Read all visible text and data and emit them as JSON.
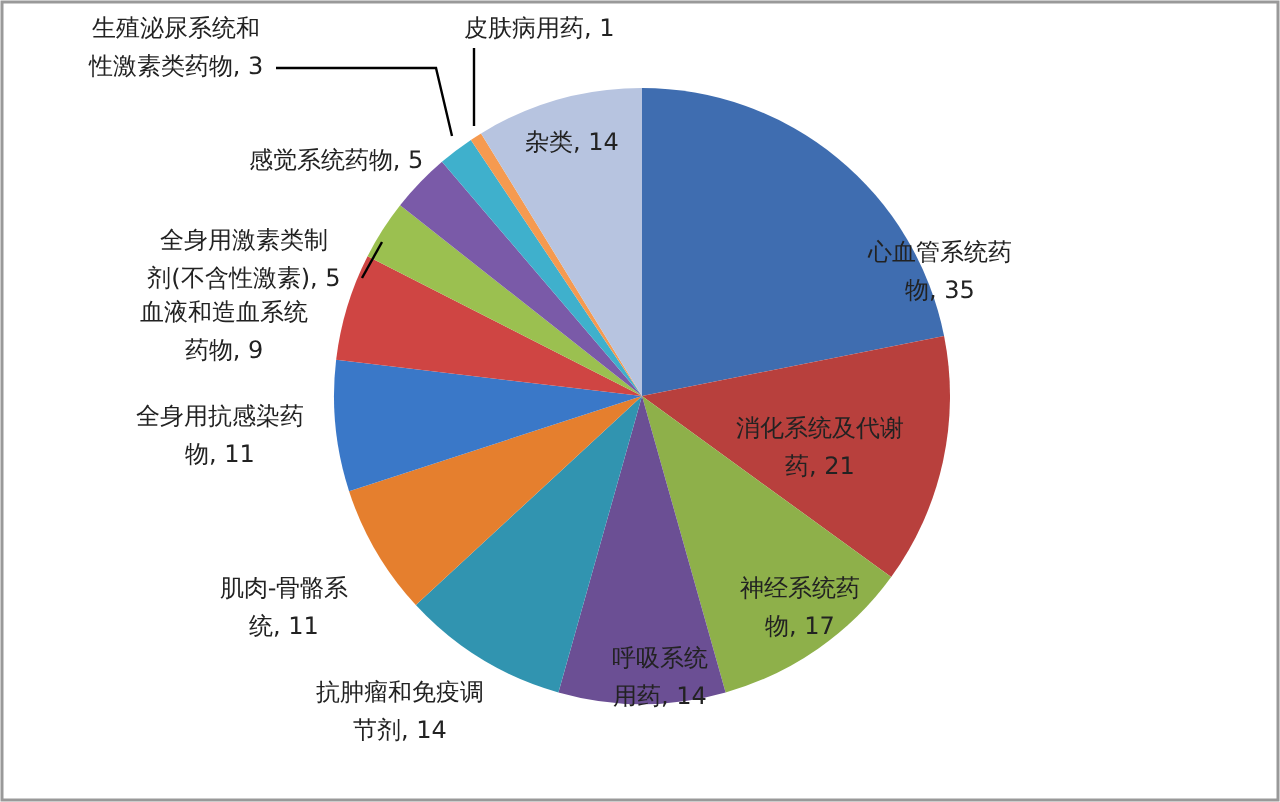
{
  "chart_data": {
    "type": "pie",
    "categories": [
      "心血管系统药物",
      "消化系统及代谢药",
      "神经系统药物",
      "呼吸系统用药",
      "抗肿瘤和免疫调节剂",
      "肌肉-骨骼系统",
      "全身用抗感染药物",
      "血液和造血系统药物",
      "全身用激素类制剂(不含性激素)",
      "感觉系统药物",
      "生殖泌尿系统和性激素类药物",
      "皮肤病用药",
      "杂类"
    ],
    "values": [
      35,
      21,
      17,
      14,
      14,
      11,
      11,
      9,
      5,
      5,
      3,
      1,
      14
    ],
    "colors": [
      "#3f6db0",
      "#b8403d",
      "#8eb04a",
      "#6b4f94",
      "#3194b0",
      "#e57f2e",
      "#3a78c8",
      "#cf4543",
      "#9bc050",
      "#7a5aa8",
      "#3fb0cc",
      "#f59a50",
      "#b7c4e0"
    ],
    "value_labels": [
      ", 35",
      ", 21",
      ", 17",
      ", 14",
      ", 14",
      ", 11",
      ", 11",
      ", 9",
      ", 5",
      ", 5",
      ", 3",
      ", 1",
      ", 14"
    ]
  }
}
